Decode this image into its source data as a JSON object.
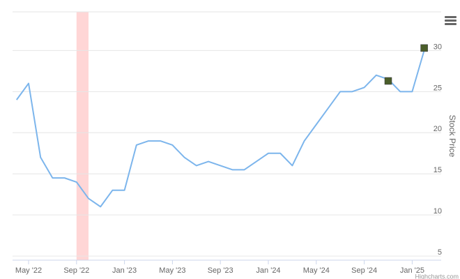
{
  "chart_data": {
    "type": "line",
    "y_axis_label": "Stock Price",
    "credits": "Highcharts.com",
    "x": [
      "2022-04",
      "2022-05",
      "2022-06",
      "2022-07",
      "2022-08",
      "2022-09",
      "2022-10",
      "2022-11",
      "2022-12",
      "2023-01",
      "2023-02",
      "2023-03",
      "2023-04",
      "2023-05",
      "2023-06",
      "2023-07",
      "2023-08",
      "2023-09",
      "2023-10",
      "2023-11",
      "2023-12",
      "2024-01",
      "2024-02",
      "2024-03",
      "2024-04",
      "2024-05",
      "2024-06",
      "2024-07",
      "2024-08",
      "2024-09",
      "2024-10",
      "2024-11",
      "2024-12",
      "2025-01",
      "2025-02"
    ],
    "xticks": [
      {
        "value": "2022-05",
        "label": "May '22"
      },
      {
        "value": "2022-09",
        "label": "Sep '22"
      },
      {
        "value": "2023-01",
        "label": "Jan '23"
      },
      {
        "value": "2023-05",
        "label": "May '23"
      },
      {
        "value": "2023-09",
        "label": "Sep '23"
      },
      {
        "value": "2024-01",
        "label": "Jan '24"
      },
      {
        "value": "2024-05",
        "label": "May '24"
      },
      {
        "value": "2024-09",
        "label": "Sep '24"
      },
      {
        "value": "2025-01",
        "label": "Jan '25"
      }
    ],
    "series": [
      {
        "name": "Stock Price",
        "color": "#7cb5ec",
        "values": [
          24,
          26,
          17,
          14.5,
          14.5,
          14,
          12,
          11,
          13,
          13,
          18.5,
          19,
          19,
          18.5,
          17,
          16,
          16.5,
          16,
          15.5,
          15.5,
          16.5,
          17.5,
          17.5,
          16,
          19,
          21,
          23,
          25,
          25,
          25.5,
          27,
          26.5,
          25,
          25,
          30
        ]
      }
    ],
    "markers": {
      "color": "#4b5e2a",
      "x": [
        "2024-11",
        "2025-02"
      ],
      "values": [
        26.3,
        30.3
      ]
    },
    "plot_band": {
      "color": "#ffd6d6",
      "from": "2022-09",
      "to": "2022-10"
    },
    "ylim": [
      4.5,
      34.7
    ],
    "yticks": [
      5,
      10,
      15,
      20,
      25,
      30
    ],
    "grid": true
  }
}
